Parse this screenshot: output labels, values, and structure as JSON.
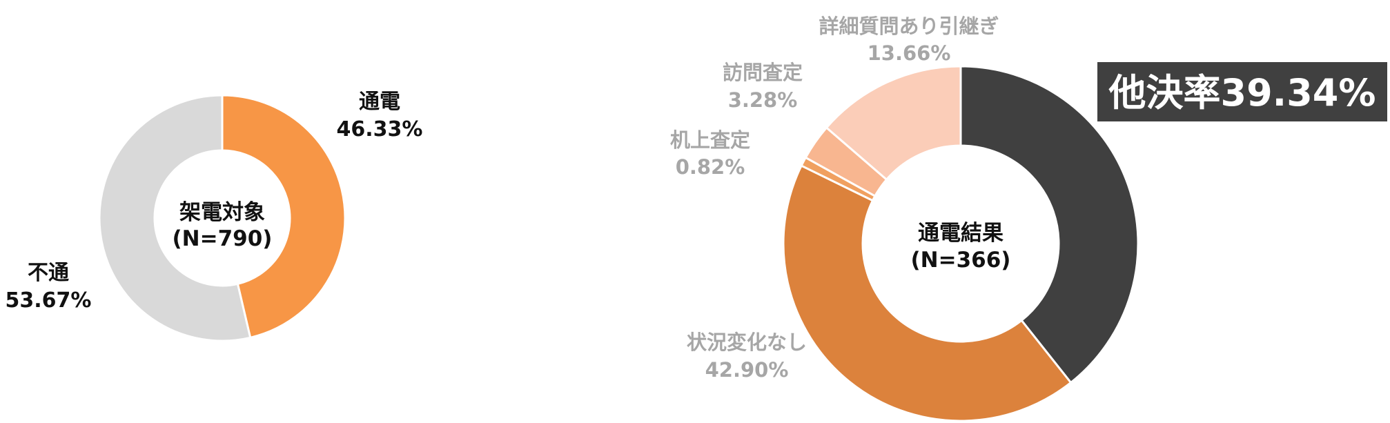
{
  "chart_data": [
    {
      "type": "pie",
      "variant": "donut",
      "center_label": [
        "架電対象",
        "(N=790)"
      ],
      "slices": [
        {
          "name": "通電",
          "value": 46.33,
          "label": "46.33%",
          "color": "#f79646"
        },
        {
          "name": "不通",
          "value": 53.67,
          "label": "53.67%",
          "color": "#d9d9d9"
        }
      ]
    },
    {
      "type": "pie",
      "variant": "donut",
      "center_label": [
        "通電結果",
        "(N=366)"
      ],
      "badge": "他決率39.34%",
      "slices": [
        {
          "name": "",
          "value": 39.34,
          "label": "",
          "color": "#404040"
        },
        {
          "name": "状況変化なし",
          "value": 42.9,
          "label": "42.90%",
          "color": "#dc823c"
        },
        {
          "name": "机上査定",
          "value": 0.82,
          "label": "0.82%",
          "color": "#f0a060"
        },
        {
          "name": "訪問査定",
          "value": 3.28,
          "label": "3.28%",
          "color": "#f8b690"
        },
        {
          "name": "詳細質問あり引継ぎ",
          "value": 13.66,
          "label": "13.66%",
          "color": "#fbcdb8"
        }
      ]
    }
  ]
}
